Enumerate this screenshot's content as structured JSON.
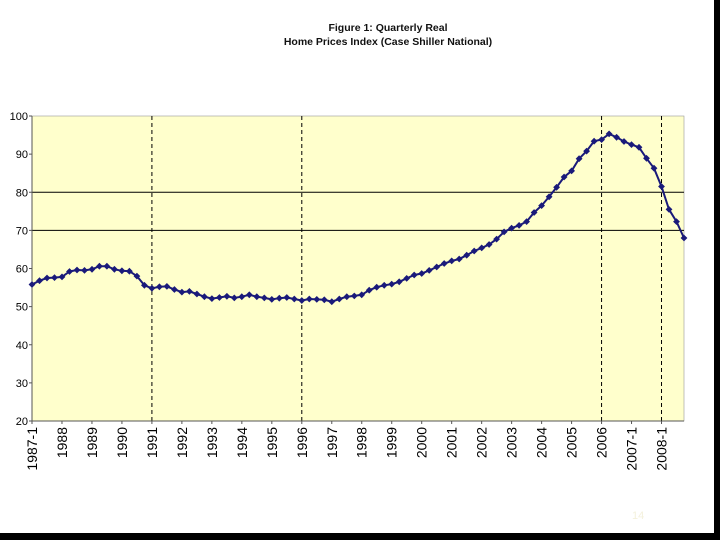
{
  "slide_number": "14",
  "chart_data": {
    "type": "line",
    "title_line1": "Figure 1: Quarterly Real",
    "title_line2": "Home Prices Index (Case Shiller National)",
    "xlabel": "",
    "ylabel": "",
    "ylim": [
      20,
      100
    ],
    "yticks": [
      20,
      30,
      40,
      50,
      60,
      70,
      80,
      90,
      100
    ],
    "horizontal_gridlines": [
      70,
      80
    ],
    "vertical_dashed_lines": [
      "1991",
      "1996",
      "2006",
      "2008-1"
    ],
    "plot_background": "#ffffcc",
    "line_color": "#1a1a7a",
    "xtick_labels": [
      "1987-1",
      "1988",
      "1989",
      "1990",
      "1991",
      "1992",
      "1993",
      "1994",
      "1995",
      "1996",
      "1997",
      "1998",
      "1999",
      "2000",
      "2001",
      "2002",
      "2003",
      "2004",
      "2005",
      "2006",
      "2007-1",
      "2008-1"
    ],
    "series": [
      {
        "name": "Real Home Prices Index",
        "start_year": 1987,
        "start_quarter": 1,
        "values": [
          55.8,
          56.8,
          57.5,
          57.6,
          57.8,
          59.2,
          59.6,
          59.5,
          59.8,
          60.6,
          60.6,
          59.8,
          59.4,
          59.3,
          58.0,
          55.6,
          54.8,
          55.2,
          55.3,
          54.5,
          53.8,
          54.0,
          53.3,
          52.6,
          52.1,
          52.4,
          52.7,
          52.3,
          52.6,
          53.1,
          52.6,
          52.3,
          51.9,
          52.2,
          52.4,
          52.0,
          51.6,
          52.0,
          51.9,
          51.8,
          51.3,
          52.0,
          52.6,
          52.8,
          53.1,
          54.3,
          55.1,
          55.6,
          55.9,
          56.5,
          57.4,
          58.3,
          58.7,
          59.5,
          60.4,
          61.3,
          62.0,
          62.5,
          63.5,
          64.6,
          65.4,
          66.3,
          67.7,
          69.6,
          70.6,
          71.3,
          72.3,
          74.7,
          76.5,
          78.8,
          81.3,
          84.0,
          85.6,
          88.8,
          90.8,
          93.4,
          93.8,
          95.3,
          94.4,
          93.3,
          92.5,
          91.8,
          88.9,
          86.3,
          81.5,
          75.5,
          72.3,
          68.0
        ]
      }
    ]
  }
}
